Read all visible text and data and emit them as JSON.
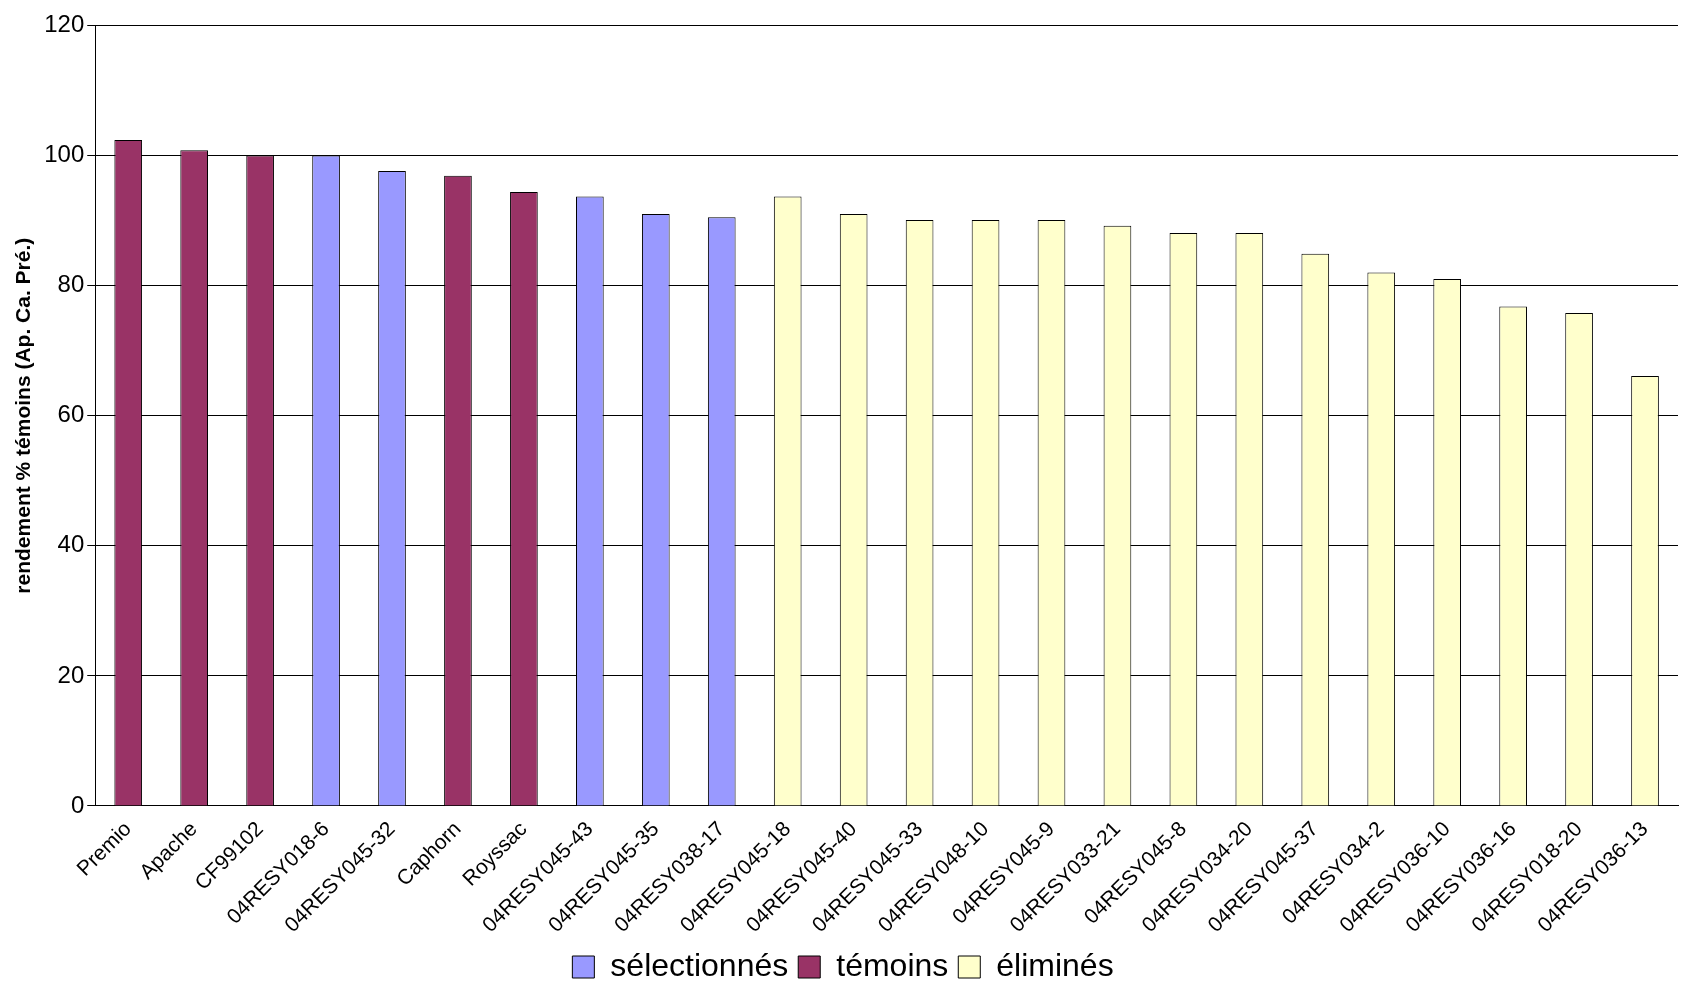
{
  "chart_data": {
    "type": "bar",
    "ylabel": "rendement % témoins (Ap. Ca. Pré.)",
    "categories": [
      "Premio",
      "Apache",
      "CF99102",
      "04RESY018-6",
      "04RESY045-32",
      "Caphorn",
      "Royssac",
      "04RESY045-43",
      "04RESY045-35",
      "04RESY038-17",
      "04RESY045-18",
      "04RESY045-40",
      "04RESY045-33",
      "04RESY048-10",
      "04RESY045-9",
      "04RESY033-21",
      "04RESY045-8",
      "04RESY034-20",
      "04RESY045-37",
      "04RESY034-2",
      "04RESY036-10",
      "04RESY036-16",
      "04RESY018-20",
      "04RESY036-13"
    ],
    "series": [
      {
        "name": "sélectionnés",
        "color": "#9999ff",
        "values": [
          null,
          null,
          null,
          100,
          97.6,
          null,
          null,
          93.7,
          91,
          90.5,
          null,
          null,
          null,
          null,
          null,
          null,
          null,
          null,
          null,
          null,
          null,
          null,
          null,
          null
        ]
      },
      {
        "name": "témoins",
        "color": "#993366",
        "values": [
          102.4,
          100.8,
          100,
          null,
          null,
          96.9,
          94.4,
          null,
          null,
          null,
          null,
          null,
          null,
          null,
          null,
          null,
          null,
          null,
          null,
          null,
          null,
          null,
          null,
          null
        ]
      },
      {
        "name": "éliminés",
        "color": "#ffffcc",
        "values": [
          null,
          null,
          null,
          null,
          null,
          null,
          null,
          null,
          null,
          null,
          93.7,
          91,
          90.1,
          90.1,
          90.1,
          89.2,
          88.1,
          88.1,
          84.9,
          82,
          81,
          76.8,
          75.8,
          66.1
        ]
      }
    ],
    "ylim": [
      0,
      120
    ],
    "yticks": [
      0,
      20,
      40,
      60,
      80,
      100,
      120
    ],
    "grid": "y",
    "legend": "bottom"
  }
}
